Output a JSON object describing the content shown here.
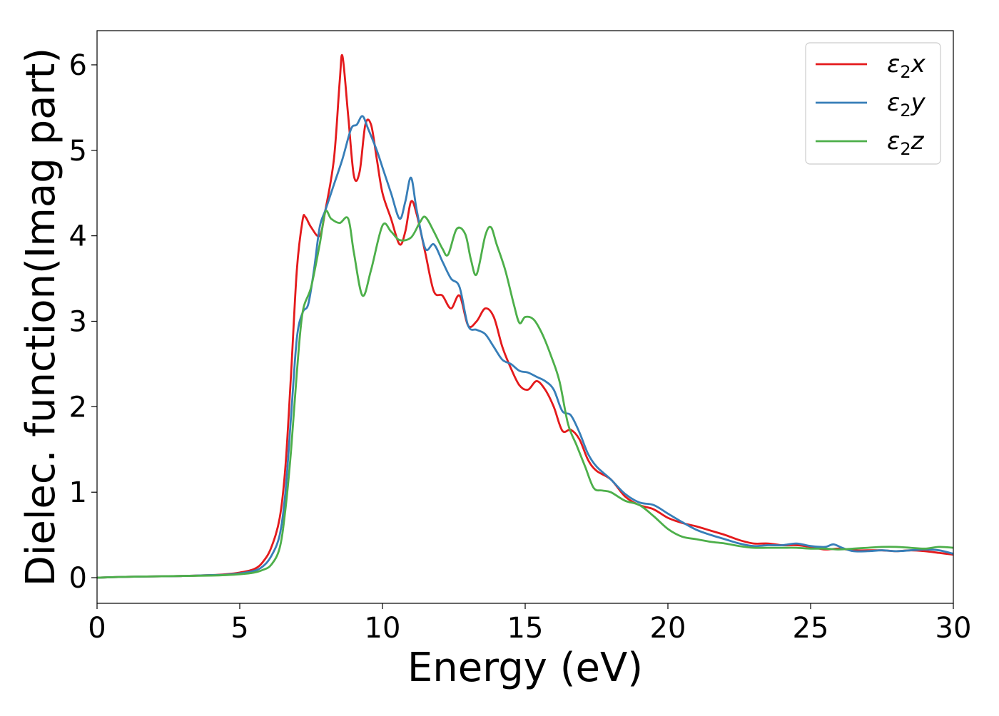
{
  "chart_data": {
    "type": "line",
    "title": "",
    "xlabel": "Energy (eV)",
    "ylabel": "Dielec. function(Imag part)",
    "xlim": [
      0,
      30
    ],
    "ylim": [
      -0.3,
      6.4
    ],
    "xticks": [
      0,
      5,
      10,
      15,
      20,
      25,
      30
    ],
    "yticks": [
      0,
      1,
      2,
      3,
      4,
      5,
      6
    ],
    "grid": false,
    "legend_position": "top-right",
    "series": [
      {
        "name": "ε₂x",
        "legend_base": "ε",
        "legend_sub": "2",
        "legend_suffix": "x",
        "color": "#e41a1c",
        "x": [
          0,
          1,
          2,
          3,
          4,
          4.5,
          5,
          5.5,
          5.8,
          6.1,
          6.4,
          6.6,
          6.8,
          7.0,
          7.2,
          7.3,
          7.5,
          7.8,
          8.0,
          8.3,
          8.5,
          8.6,
          8.8,
          9.0,
          9.2,
          9.4,
          9.6,
          9.8,
          10.0,
          10.3,
          10.6,
          10.8,
          11.0,
          11.2,
          11.5,
          11.8,
          12.1,
          12.4,
          12.7,
          13.0,
          13.3,
          13.6,
          13.9,
          14.2,
          14.5,
          14.8,
          15.1,
          15.4,
          15.7,
          16.0,
          16.3,
          16.6,
          16.9,
          17.2,
          17.5,
          18.0,
          18.5,
          19.0,
          19.5,
          20.0,
          20.5,
          21.0,
          21.5,
          22.0,
          22.5,
          23.0,
          23.5,
          24.0,
          24.5,
          25.0,
          25.5,
          26.0,
          26.5,
          27.0,
          27.5,
          28.0,
          28.5,
          29.0,
          29.5,
          30.0
        ],
        "y": [
          0,
          0.01,
          0.015,
          0.02,
          0.03,
          0.04,
          0.06,
          0.1,
          0.18,
          0.35,
          0.7,
          1.3,
          2.4,
          3.6,
          4.18,
          4.22,
          4.1,
          4.0,
          4.3,
          4.9,
          5.8,
          6.1,
          5.4,
          4.7,
          4.75,
          5.3,
          5.3,
          4.9,
          4.5,
          4.2,
          3.9,
          4.05,
          4.4,
          4.25,
          3.8,
          3.35,
          3.3,
          3.15,
          3.3,
          2.95,
          3.0,
          3.15,
          3.05,
          2.7,
          2.45,
          2.25,
          2.2,
          2.3,
          2.2,
          2.0,
          1.72,
          1.73,
          1.62,
          1.38,
          1.25,
          1.15,
          0.95,
          0.85,
          0.8,
          0.7,
          0.64,
          0.6,
          0.55,
          0.5,
          0.44,
          0.4,
          0.4,
          0.38,
          0.38,
          0.36,
          0.33,
          0.34,
          0.32,
          0.32,
          0.32,
          0.31,
          0.32,
          0.31,
          0.29,
          0.27
        ]
      },
      {
        "name": "ε₂y",
        "legend_base": "ε",
        "legend_sub": "2",
        "legend_suffix": "y",
        "color": "#377eb8",
        "x": [
          0,
          1,
          2,
          3,
          4,
          4.5,
          5,
          5.5,
          5.8,
          6.1,
          6.4,
          6.6,
          6.8,
          7.0,
          7.2,
          7.4,
          7.6,
          7.8,
          8.0,
          8.3,
          8.6,
          8.9,
          9.1,
          9.3,
          9.5,
          9.8,
          10.0,
          10.3,
          10.6,
          10.8,
          11.0,
          11.2,
          11.5,
          11.8,
          12.1,
          12.4,
          12.7,
          13.0,
          13.3,
          13.6,
          13.9,
          14.2,
          14.5,
          14.8,
          15.1,
          15.4,
          15.7,
          16.0,
          16.3,
          16.6,
          16.9,
          17.2,
          17.5,
          18.0,
          18.5,
          19.0,
          19.5,
          20.0,
          20.5,
          21.0,
          21.5,
          22.0,
          22.5,
          23.0,
          23.5,
          24.0,
          24.5,
          25.0,
          25.5,
          25.8,
          26.1,
          26.5,
          27.0,
          27.5,
          28.0,
          28.5,
          29.0,
          29.5,
          30.0
        ],
        "y": [
          0,
          0.01,
          0.015,
          0.02,
          0.03,
          0.035,
          0.05,
          0.08,
          0.13,
          0.25,
          0.5,
          1.0,
          1.9,
          2.8,
          3.1,
          3.2,
          3.6,
          4.1,
          4.3,
          4.6,
          4.9,
          5.25,
          5.3,
          5.4,
          5.25,
          5.0,
          4.8,
          4.5,
          4.2,
          4.4,
          4.68,
          4.3,
          3.85,
          3.9,
          3.7,
          3.5,
          3.4,
          2.95,
          2.9,
          2.85,
          2.7,
          2.55,
          2.5,
          2.42,
          2.4,
          2.35,
          2.3,
          2.2,
          1.95,
          1.9,
          1.7,
          1.45,
          1.3,
          1.15,
          0.98,
          0.88,
          0.85,
          0.75,
          0.65,
          0.56,
          0.5,
          0.45,
          0.4,
          0.37,
          0.38,
          0.38,
          0.4,
          0.37,
          0.36,
          0.39,
          0.35,
          0.31,
          0.31,
          0.32,
          0.31,
          0.32,
          0.33,
          0.32,
          0.28
        ]
      },
      {
        "name": "ε₂z",
        "legend_base": "ε",
        "legend_sub": "2",
        "legend_suffix": "z",
        "color": "#4daf4a",
        "x": [
          0,
          1,
          2,
          3,
          4,
          4.5,
          5,
          5.5,
          5.8,
          6.1,
          6.4,
          6.6,
          6.8,
          7.0,
          7.2,
          7.5,
          7.8,
          8.0,
          8.2,
          8.5,
          8.8,
          9.0,
          9.3,
          9.6,
          10.0,
          10.3,
          10.6,
          11.0,
          11.3,
          11.5,
          11.8,
          12.1,
          12.3,
          12.6,
          12.9,
          13.1,
          13.3,
          13.6,
          13.8,
          14.0,
          14.3,
          14.6,
          14.8,
          15.0,
          15.3,
          15.6,
          15.9,
          16.2,
          16.5,
          16.8,
          17.1,
          17.4,
          17.7,
          18.0,
          18.5,
          19.0,
          19.5,
          20.0,
          20.5,
          21.0,
          21.5,
          22.0,
          22.5,
          23.0,
          23.5,
          24.0,
          24.5,
          25.0,
          25.5,
          26.0,
          26.5,
          27.0,
          27.5,
          28.0,
          28.5,
          29.0,
          29.5,
          30.0
        ],
        "y": [
          0,
          0.01,
          0.015,
          0.02,
          0.025,
          0.03,
          0.04,
          0.06,
          0.09,
          0.15,
          0.35,
          0.8,
          1.5,
          2.4,
          3.1,
          3.4,
          3.9,
          4.28,
          4.2,
          4.15,
          4.2,
          3.8,
          3.3,
          3.6,
          4.12,
          4.05,
          3.95,
          3.98,
          4.15,
          4.22,
          4.05,
          3.85,
          3.78,
          4.08,
          4.02,
          3.72,
          3.55,
          4.0,
          4.1,
          3.9,
          3.6,
          3.2,
          2.98,
          3.05,
          3.02,
          2.85,
          2.6,
          2.3,
          1.8,
          1.55,
          1.3,
          1.05,
          1.02,
          1.0,
          0.9,
          0.85,
          0.72,
          0.57,
          0.48,
          0.45,
          0.42,
          0.4,
          0.37,
          0.35,
          0.35,
          0.35,
          0.35,
          0.34,
          0.34,
          0.33,
          0.34,
          0.35,
          0.36,
          0.36,
          0.35,
          0.34,
          0.36,
          0.35
        ]
      }
    ]
  }
}
